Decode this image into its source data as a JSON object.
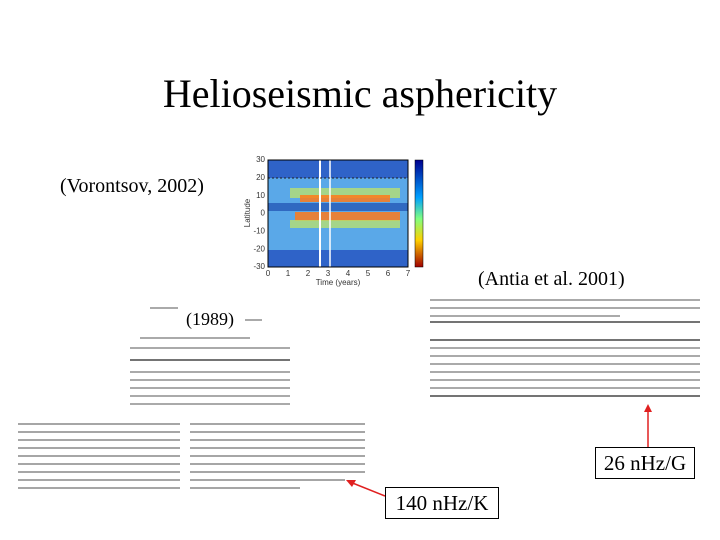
{
  "title": "Helioseismic asphericity",
  "labels": {
    "vorontsov": "(Vorontsov, 2002)",
    "antia": "(Antia et al. 2001)",
    "year1989": "(1989)",
    "magnetic": "26 nHz/G",
    "thermal": "140 nHz/K"
  },
  "figure": {
    "y_label": "Latitude",
    "x_label": "Time (years)",
    "y_ticks": [
      "30",
      "20",
      "10",
      "0",
      "-10",
      "-20",
      "-30"
    ],
    "x_ticks": [
      "0",
      "1",
      "2",
      "3",
      "4",
      "5",
      "6",
      "7"
    ]
  }
}
